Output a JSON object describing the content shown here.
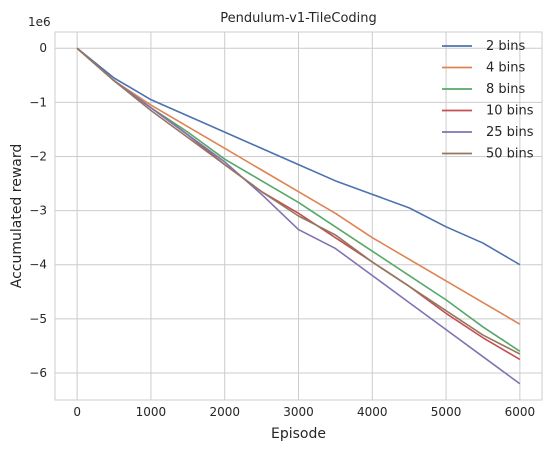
{
  "chart_data": {
    "type": "line",
    "title": "Pendulum-v1-TileCoding",
    "xlabel": "Episode",
    "ylabel": "Accumulated reward",
    "y_multiplier": "1e6",
    "xlim": [
      -300,
      6300
    ],
    "ylim": [
      -6.5,
      0.3
    ],
    "xticks": [
      0,
      1000,
      2000,
      3000,
      4000,
      5000,
      6000
    ],
    "yticks": [
      0,
      -1,
      -2,
      -3,
      -4,
      -5,
      -6
    ],
    "xtick_labels": [
      "0",
      "1000",
      "2000",
      "3000",
      "4000",
      "5000",
      "6000"
    ],
    "ytick_labels": [
      "0",
      "−1",
      "−2",
      "−3",
      "−4",
      "−5",
      "−6"
    ],
    "grid": true,
    "legend_position": "top-right",
    "x": [
      0,
      500,
      1000,
      1500,
      2000,
      2500,
      3000,
      3500,
      4000,
      4500,
      5000,
      5500,
      6000
    ],
    "series": [
      {
        "name": "2 bins",
        "color": "#4c72b0",
        "values": [
          0,
          -0.55,
          -0.95,
          -1.25,
          -1.55,
          -1.85,
          -2.15,
          -2.45,
          -2.7,
          -2.95,
          -3.3,
          -3.6,
          -4.0
        ]
      },
      {
        "name": "4 bins",
        "color": "#dd8452",
        "values": [
          0,
          -0.6,
          -1.05,
          -1.45,
          -1.85,
          -2.25,
          -2.65,
          -3.05,
          -3.5,
          -3.9,
          -4.3,
          -4.7,
          -5.1
        ]
      },
      {
        "name": "8 bins",
        "color": "#55a868",
        "values": [
          0,
          -0.6,
          -1.1,
          -1.55,
          -2.05,
          -2.45,
          -2.85,
          -3.3,
          -3.75,
          -4.2,
          -4.65,
          -5.15,
          -5.6
        ]
      },
      {
        "name": "10 bins",
        "color": "#c44e52",
        "values": [
          0,
          -0.6,
          -1.1,
          -1.6,
          -2.15,
          -2.65,
          -3.05,
          -3.5,
          -3.95,
          -4.4,
          -4.9,
          -5.35,
          -5.75
        ]
      },
      {
        "name": "25 bins",
        "color": "#8172b3",
        "values": [
          0,
          -0.6,
          -1.1,
          -1.6,
          -2.1,
          -2.7,
          -3.35,
          -3.7,
          -4.2,
          -4.7,
          -5.2,
          -5.7,
          -6.2
        ]
      },
      {
        "name": "50 bins",
        "color": "#937860",
        "values": [
          0,
          -0.6,
          -1.15,
          -1.65,
          -2.15,
          -2.65,
          -3.1,
          -3.45,
          -3.95,
          -4.4,
          -4.85,
          -5.3,
          -5.65
        ]
      }
    ]
  }
}
